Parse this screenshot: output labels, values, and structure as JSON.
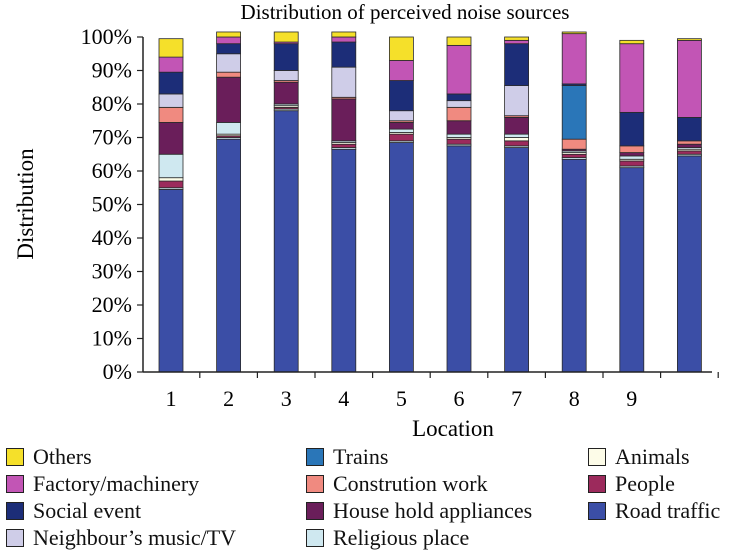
{
  "chart_data": {
    "type": "bar",
    "stacked": true,
    "title": "Distribution of perceived noise sources",
    "xlabel": "Location",
    "ylabel": "Distribution",
    "ylim": [
      0,
      100
    ],
    "y_ticks": [
      "0%",
      "10%",
      "20%",
      "30%",
      "40%",
      "50%",
      "60%",
      "70%",
      "80%",
      "90%",
      "100%"
    ],
    "categories": [
      "1",
      "2",
      "3",
      "4",
      "5",
      "6",
      "7",
      "8",
      "9",
      ""
    ],
    "grid": false,
    "legend_position": "bottom",
    "series": [
      {
        "name": "Road traffic",
        "color": "#3b4ea6",
        "values": [
          54.5,
          69.5,
          78.0,
          66.5,
          68.5,
          67.5,
          67.0,
          63.5,
          61.0,
          64.5
        ]
      },
      {
        "name": "Religious place",
        "color": "#cfe8f0",
        "values": [
          0.5,
          0.5,
          0.5,
          0.5,
          0.5,
          0.5,
          0.5,
          0.5,
          0.5,
          0.5
        ]
      },
      {
        "name": "People",
        "color": "#9c2a5c",
        "values": [
          2.0,
          0.5,
          0.5,
          1.0,
          2.0,
          1.5,
          1.5,
          1.0,
          1.5,
          1.0
        ]
      },
      {
        "name": "Animals",
        "color": "#fdfce8",
        "values": [
          1.0,
          0.5,
          0.5,
          0.5,
          0.5,
          0.5,
          1.0,
          0.5,
          0.5,
          0.5
        ]
      },
      {
        "name": "Religious place",
        "color": "#cfe8f0",
        "values": [
          7.0,
          3.5,
          0.5,
          0.5,
          1.0,
          1.0,
          1.0,
          0.5,
          1.0,
          0.5
        ]
      },
      {
        "name": "House hold appliances",
        "color": "#6a1e5a",
        "values": [
          9.5,
          13.5,
          6.5,
          12.5,
          2.0,
          4.0,
          5.0,
          0.5,
          1.0,
          1.0
        ]
      },
      {
        "name": "Constrution work",
        "color": "#f08a80",
        "values": [
          4.5,
          1.5,
          0.5,
          0.5,
          0.5,
          4.0,
          0.5,
          3.0,
          2.0,
          1.0
        ]
      },
      {
        "name": "Trains",
        "color": "#2a76b8",
        "values": [
          0,
          0,
          0,
          0,
          0,
          0,
          0,
          16.0,
          0,
          0
        ]
      },
      {
        "name": "Neighbour’s music/TV",
        "color": "#cfcde8",
        "values": [
          4.0,
          5.5,
          3.0,
          9.0,
          3.0,
          2.0,
          9.0,
          0,
          0,
          0
        ]
      },
      {
        "name": "Social event",
        "color": "#1c2d78",
        "values": [
          6.5,
          3.0,
          8.0,
          7.5,
          9.0,
          2.0,
          12.5,
          0.5,
          10.0,
          7.0
        ]
      },
      {
        "name": "Factory/machinery",
        "color": "#c255b5",
        "values": [
          4.5,
          2.0,
          0.5,
          1.5,
          6.0,
          14.5,
          1.0,
          15.0,
          20.5,
          23.0
        ]
      },
      {
        "name": "Others",
        "color": "#f5e02a",
        "values": [
          5.5,
          1.5,
          3.0,
          1.5,
          7.0,
          2.5,
          1.0,
          0.5,
          1.0,
          0.5
        ]
      }
    ]
  },
  "legend": [
    {
      "label": "Others",
      "color": "#f5e02a"
    },
    {
      "label": "Trains",
      "color": "#2a76b8"
    },
    {
      "label": "Animals",
      "color": "#fdfce8"
    },
    {
      "label": "Factory/machinery",
      "color": "#c255b5"
    },
    {
      "label": "Constrution work",
      "color": "#f08a80"
    },
    {
      "label": "People",
      "color": "#9c2a5c"
    },
    {
      "label": "Social event",
      "color": "#1c2d78"
    },
    {
      "label": "House hold appliances",
      "color": "#6a1e5a"
    },
    {
      "label": "Road traffic",
      "color": "#3b4ea6"
    },
    {
      "label": "Neighbour’s music/TV",
      "color": "#cfcde8"
    },
    {
      "label": "Religious place",
      "color": "#cfe8f0"
    }
  ]
}
